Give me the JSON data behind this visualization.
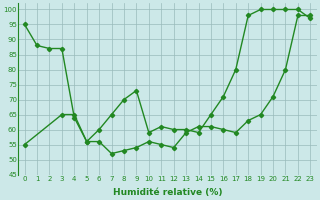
{
  "line1_x": [
    0,
    1,
    2,
    3,
    4,
    5,
    6,
    7,
    8,
    9,
    10,
    11,
    12,
    13,
    14,
    15,
    16,
    17,
    18,
    19,
    20,
    21,
    22,
    23
  ],
  "line1_y": [
    95,
    88,
    87,
    87,
    64,
    56,
    56,
    52,
    53,
    54,
    56,
    55,
    54,
    59,
    61,
    61,
    60,
    59,
    63,
    65,
    71,
    80,
    98,
    98
  ],
  "line2_x": [
    0,
    3,
    4,
    5,
    6,
    7,
    8,
    9,
    10,
    11,
    12,
    13,
    14,
    15,
    16,
    17,
    18,
    19,
    20,
    21,
    22,
    23
  ],
  "line2_y": [
    55,
    65,
    65,
    56,
    60,
    65,
    70,
    73,
    59,
    61,
    60,
    60,
    59,
    65,
    71,
    80,
    98,
    100,
    100,
    100,
    100,
    97
  ],
  "line_color": "#228822",
  "bg_color": "#cce8e8",
  "grid_color": "#99bbbb",
  "xlabel": "Humidité relative (%)",
  "xlim": [
    -0.5,
    23.5
  ],
  "ylim": [
    45,
    102
  ],
  "yticks": [
    45,
    50,
    55,
    60,
    65,
    70,
    75,
    80,
    85,
    90,
    95,
    100
  ],
  "xticks": [
    0,
    1,
    2,
    3,
    4,
    5,
    6,
    7,
    8,
    9,
    10,
    11,
    12,
    13,
    14,
    15,
    16,
    17,
    18,
    19,
    20,
    21,
    22,
    23
  ],
  "xlabel_fontsize": 6.5,
  "tick_fontsize": 5.0,
  "marker": "D",
  "markersize": 2.2,
  "linewidth": 1.0
}
